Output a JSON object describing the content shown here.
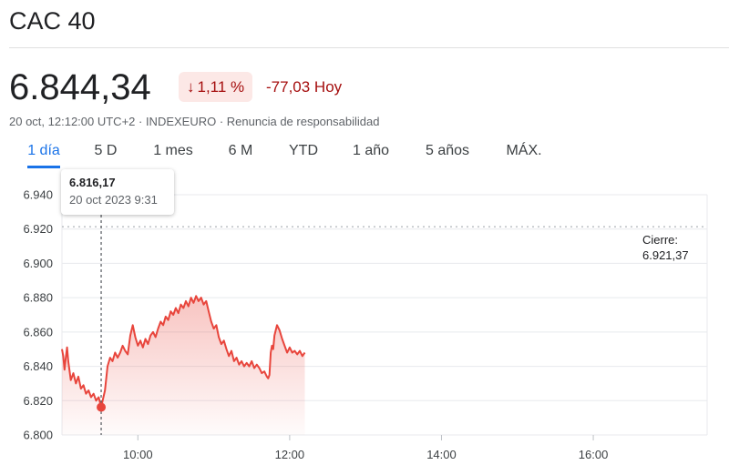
{
  "header": {
    "title": "CAC 40"
  },
  "quote": {
    "price": "6.844,34",
    "change_pct": "1,11 %",
    "change_abs": "-77,03 Hoy",
    "meta": "20 oct, 12:12:00 UTC+2 · INDEXEURO · Renuncia de responsabilidad"
  },
  "tabs": [
    {
      "label": "1 día",
      "active": true
    },
    {
      "label": "5 D"
    },
    {
      "label": "1 mes"
    },
    {
      "label": "6 M"
    },
    {
      "label": "YTD"
    },
    {
      "label": "1 año"
    },
    {
      "label": "5 años"
    },
    {
      "label": "MÁX."
    }
  ],
  "tooltip": {
    "value": "6.816,17",
    "datetime": "20 oct 2023 9:31"
  },
  "close": {
    "label": "Cierre:",
    "value": "6.921,37"
  },
  "colors": {
    "line": "#e8453c",
    "negative": "#a50e0e",
    "accent": "#1a73e8",
    "badge_bg": "#fce8e6"
  },
  "chart_data": {
    "type": "area",
    "x_axis": {
      "min": "09:00",
      "max": "17:30",
      "ticks": [
        "10:00",
        "12:00",
        "14:00",
        "16:00"
      ]
    },
    "y_axis": {
      "min": 6800,
      "max": 6940,
      "ticks": [
        "6.940",
        "6.920",
        "6.900",
        "6.880",
        "6.860",
        "6.840",
        "6.820",
        "6.800"
      ]
    },
    "reference_line": {
      "value": 6921.37
    },
    "marker": {
      "x": "09:31",
      "y": 6816.17
    },
    "grid": true,
    "series": [
      {
        "points": [
          [
            "09:00",
            6850
          ],
          [
            "09:01",
            6846
          ],
          [
            "09:02",
            6838
          ],
          [
            "09:03",
            6845
          ],
          [
            "09:04",
            6851
          ],
          [
            "09:05",
            6843
          ],
          [
            "09:07",
            6832
          ],
          [
            "09:09",
            6836
          ],
          [
            "09:11",
            6830
          ],
          [
            "09:13",
            6834
          ],
          [
            "09:15",
            6827
          ],
          [
            "09:17",
            6829
          ],
          [
            "09:19",
            6824
          ],
          [
            "09:21",
            6826
          ],
          [
            "09:23",
            6822
          ],
          [
            "09:25",
            6824
          ],
          [
            "09:27",
            6820
          ],
          [
            "09:29",
            6822
          ],
          [
            "09:31",
            6816.17
          ],
          [
            "09:34",
            6826
          ],
          [
            "09:36",
            6840
          ],
          [
            "09:38",
            6845
          ],
          [
            "09:40",
            6843
          ],
          [
            "09:42",
            6848
          ],
          [
            "09:44",
            6845
          ],
          [
            "09:46",
            6848
          ],
          [
            "09:48",
            6852
          ],
          [
            "09:50",
            6849
          ],
          [
            "09:52",
            6847
          ],
          [
            "09:54",
            6858
          ],
          [
            "09:56",
            6864
          ],
          [
            "09:58",
            6857
          ],
          [
            "10:00",
            6852
          ],
          [
            "10:02",
            6855
          ],
          [
            "10:04",
            6851
          ],
          [
            "10:06",
            6856
          ],
          [
            "10:08",
            6853
          ],
          [
            "10:10",
            6858
          ],
          [
            "10:12",
            6860
          ],
          [
            "10:14",
            6857
          ],
          [
            "10:16",
            6862
          ],
          [
            "10:18",
            6866
          ],
          [
            "10:20",
            6864
          ],
          [
            "10:22",
            6869
          ],
          [
            "10:24",
            6867
          ],
          [
            "10:26",
            6872
          ],
          [
            "10:28",
            6870
          ],
          [
            "10:30",
            6874
          ],
          [
            "10:32",
            6871
          ],
          [
            "10:34",
            6876
          ],
          [
            "10:36",
            6874
          ],
          [
            "10:38",
            6878
          ],
          [
            "10:40",
            6875
          ],
          [
            "10:42",
            6880
          ],
          [
            "10:44",
            6877
          ],
          [
            "10:46",
            6881
          ],
          [
            "10:48",
            6878
          ],
          [
            "10:50",
            6880
          ],
          [
            "10:52",
            6876
          ],
          [
            "10:54",
            6878
          ],
          [
            "10:56",
            6872
          ],
          [
            "10:58",
            6866
          ],
          [
            "11:00",
            6862
          ],
          [
            "11:02",
            6864
          ],
          [
            "11:04",
            6857
          ],
          [
            "11:06",
            6853
          ],
          [
            "11:08",
            6855
          ],
          [
            "11:10",
            6850
          ],
          [
            "11:12",
            6846
          ],
          [
            "11:14",
            6849
          ],
          [
            "11:16",
            6843
          ],
          [
            "11:18",
            6845
          ],
          [
            "11:20",
            6841
          ],
          [
            "11:22",
            6843
          ],
          [
            "11:24",
            6840
          ],
          [
            "11:26",
            6842
          ],
          [
            "11:28",
            6840
          ],
          [
            "11:30",
            6843
          ],
          [
            "11:32",
            6839
          ],
          [
            "11:34",
            6841
          ],
          [
            "11:36",
            6839
          ],
          [
            "11:38",
            6836
          ],
          [
            "11:40",
            6837
          ],
          [
            "11:42",
            6834
          ],
          [
            "11:43",
            6833
          ],
          [
            "11:44",
            6835
          ],
          [
            "11:45",
            6848
          ],
          [
            "11:46",
            6852
          ],
          [
            "11:47",
            6850
          ],
          [
            "11:48",
            6858
          ],
          [
            "11:50",
            6864
          ],
          [
            "11:52",
            6861
          ],
          [
            "11:54",
            6856
          ],
          [
            "11:56",
            6852
          ],
          [
            "11:58",
            6848
          ],
          [
            "12:00",
            6851
          ],
          [
            "12:02",
            6848
          ],
          [
            "12:04",
            6849
          ],
          [
            "12:06",
            6847
          ],
          [
            "12:08",
            6849
          ],
          [
            "12:10",
            6846
          ],
          [
            "12:12",
            6848
          ]
        ]
      }
    ]
  }
}
